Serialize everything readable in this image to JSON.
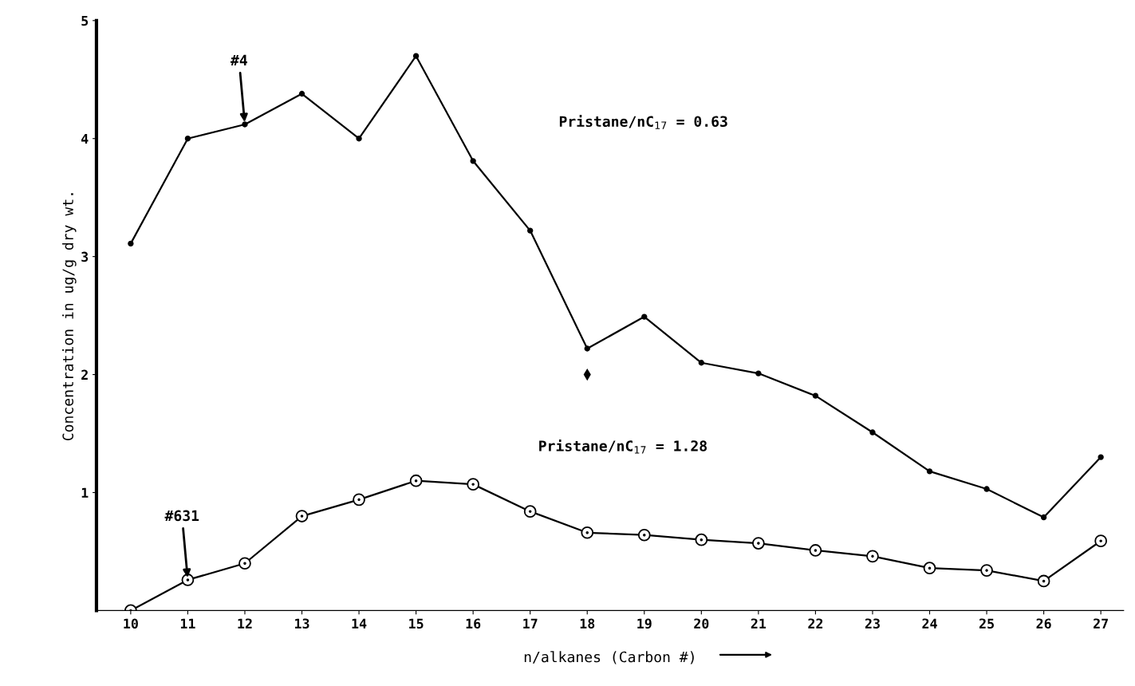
{
  "chart_data": {
    "type": "line",
    "xlabel": "n/alkanes (Carbon #)",
    "ylabel": "Concentration in ug/g dry wt.",
    "categories": [
      "10",
      "11",
      "12",
      "13",
      "14",
      "15",
      "16",
      "17",
      "18",
      "19",
      "20",
      "21",
      "22",
      "23",
      "24",
      "25",
      "26",
      "27"
    ],
    "series": [
      {
        "name": "#4",
        "color": "#000000",
        "marker": "circle",
        "values": [
          3.11,
          4.0,
          4.12,
          4.38,
          4.0,
          4.7,
          3.81,
          3.22,
          2.22,
          2.49,
          2.1,
          2.01,
          1.82,
          1.51,
          1.18,
          1.03,
          0.79,
          1.3
        ]
      },
      {
        "name": "#631",
        "color": "#000000",
        "marker": "circle",
        "values": [
          0.0,
          0.26,
          0.4,
          0.8,
          0.94,
          1.1,
          1.07,
          0.84,
          0.66,
          0.64,
          0.6,
          0.57,
          0.51,
          0.46,
          0.36,
          0.34,
          0.25,
          0.59
        ]
      },
      {
        "type": "scatter",
        "color": "#000000",
        "marker": "diamond",
        "x": [
          "18"
        ],
        "values": [
          2.0
        ]
      }
    ],
    "annotations": [
      "Pristane/nC$_{17}$ = 0.63",
      "Pristane/nC$_{17}$ = 1.28"
    ],
    "ylim": [
      0,
      5
    ],
    "yticks": [
      1,
      2,
      3,
      4,
      5
    ],
    "grid": false,
    "legend": false
  }
}
